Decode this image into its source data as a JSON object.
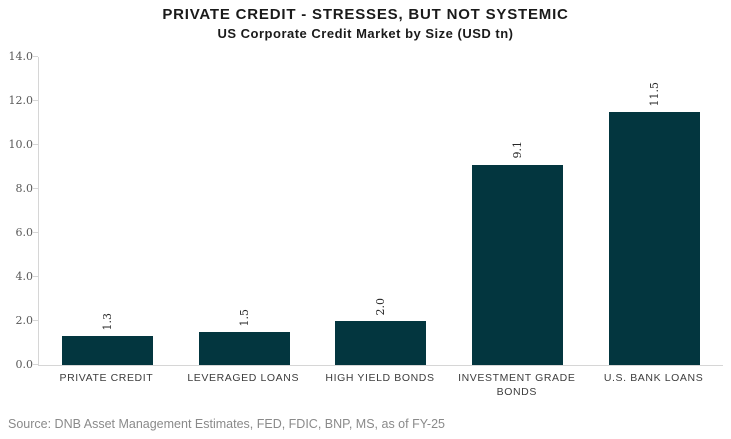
{
  "chart_data": {
    "type": "bar",
    "title": "PRIVATE CREDIT - STRESSES, BUT NOT SYSTEMIC",
    "subtitle": "US Corporate Credit Market by Size (USD tn)",
    "categories": [
      "PRIVATE CREDIT",
      "LEVERAGED LOANS",
      "HIGH YIELD BONDS",
      "INVESTMENT GRADE BONDS",
      "U.S. BANK LOANS"
    ],
    "values": [
      1.3,
      1.5,
      2.0,
      9.1,
      11.5
    ],
    "value_labels": [
      "1.3",
      "1.5",
      "2.0",
      "9.1",
      "11.5"
    ],
    "xlabel": "",
    "ylabel": "",
    "ylim": [
      0,
      14
    ],
    "ytick_step": 2,
    "ytick_labels": [
      "0.0",
      "2.0",
      "4.0",
      "6.0",
      "8.0",
      "10.0",
      "12.0",
      "14.0"
    ],
    "grid": false,
    "legend": false,
    "bar_color": "#03363f",
    "axis_color": "#d6d6d6"
  },
  "source": "Source: DNB Asset Management Estimates, FED, FDIC, BNP, MS, as of FY-25"
}
